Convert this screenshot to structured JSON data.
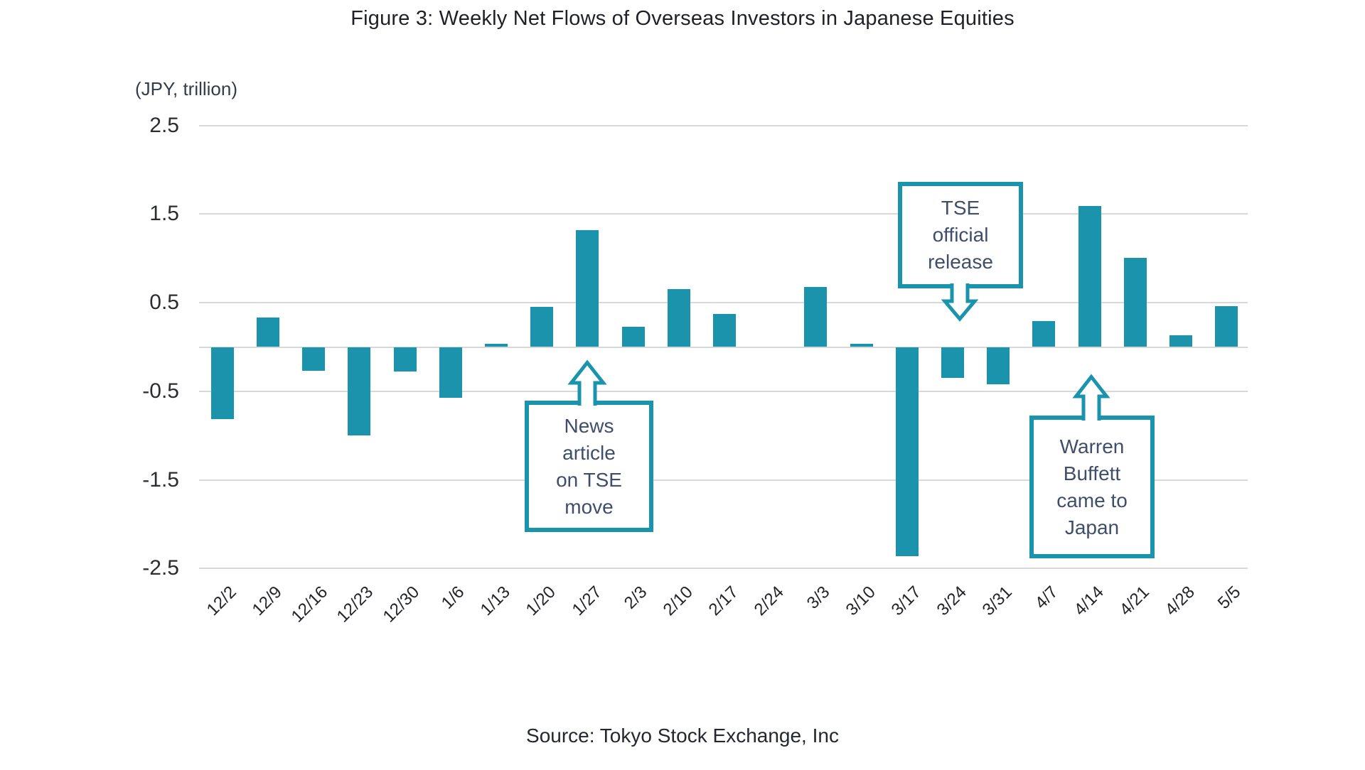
{
  "title": "Figure 3: Weekly Net Flows of Overseas Investors in Japanese Equities",
  "y_axis_unit_label": "(JPY, trillion)",
  "source_caption": "Source: Tokyo Stock Exchange, Inc",
  "colors": {
    "bar": "#1B93AC",
    "annotation_border": "#1A93AD",
    "annotation_text": "#3E4E6B",
    "gridline": "#D8D8D8",
    "text": "#232529",
    "background": "#FFFFFF"
  },
  "y_axis_ticks": [
    "2.5",
    "1.5",
    "0.5",
    "-0.5",
    "-1.5",
    "-2.5"
  ],
  "chart_data": {
    "type": "bar",
    "title": "Figure 3: Weekly Net Flows of Overseas Investors in Japanese Equities",
    "ylabel": "(JPY, trillion)",
    "xlabel": "",
    "ylim": [
      -2.5,
      2.5
    ],
    "grid": "horizontal",
    "gridline_values": [
      2.5,
      1.5,
      0.5,
      0,
      -0.5,
      -1.5,
      -2.5
    ],
    "legend": "none",
    "bar_color": "#1B93AC",
    "categories": [
      "12/2",
      "12/9",
      "12/16",
      "12/23",
      "12/30",
      "1/6",
      "1/13",
      "1/20",
      "1/27",
      "2/3",
      "2/10",
      "2/17",
      "2/24",
      "3/3",
      "3/10",
      "3/17",
      "3/24",
      "3/31",
      "4/7",
      "4/14",
      "4/21",
      "4/28",
      "5/5"
    ],
    "values": [
      -0.81,
      0.33,
      -0.27,
      -1.0,
      -0.28,
      -0.57,
      0.04,
      0.45,
      1.32,
      0.23,
      0.65,
      0.37,
      0.0,
      0.68,
      0.04,
      -2.36,
      -0.35,
      -0.42,
      0.29,
      1.59,
      1.01,
      0.13,
      0.46
    ],
    "annotations": [
      {
        "id": "news",
        "text": "News article on TSE move",
        "lines": [
          "News",
          "article",
          "on TSE",
          "move"
        ],
        "arrow_direction": "up",
        "target_category": "1/27"
      },
      {
        "id": "tse",
        "text": "TSE official release",
        "lines": [
          "TSE",
          "official",
          "release"
        ],
        "arrow_direction": "down",
        "target_category": "3/24"
      },
      {
        "id": "warren",
        "text": "Warren Buffett came to Japan",
        "lines": [
          "Warren",
          "Buffett",
          "came to",
          "Japan"
        ],
        "arrow_direction": "up",
        "target_category": "4/14"
      }
    ]
  }
}
